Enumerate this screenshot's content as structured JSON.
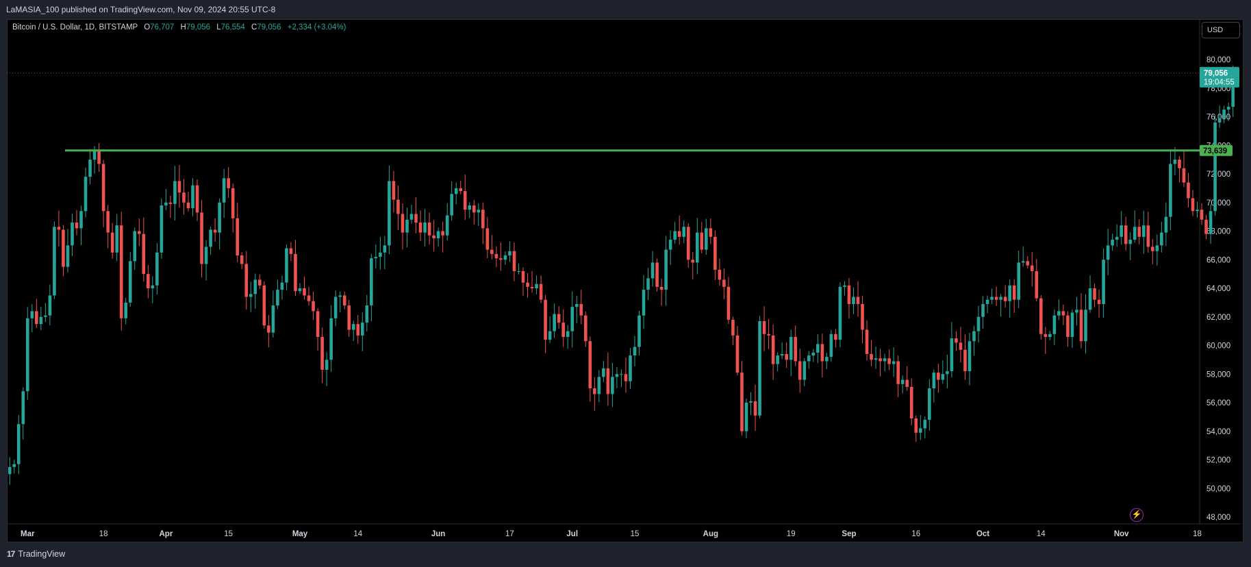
{
  "header": {
    "publish_line": "LaMASIA_100 published on TradingView.com, Nov 09, 2024 20:55 UTC-8"
  },
  "legend": {
    "symbol": "Bitcoin / U.S. Dollar, 1D, BITSTAMP",
    "open_label": "O",
    "open": "76,707",
    "high_label": "H",
    "high": "79,056",
    "low_label": "L",
    "low": "76,554",
    "close_label": "C",
    "close": "79,056",
    "change": "+2,334 (+3.04%)"
  },
  "currency_button": "USD",
  "footer": {
    "brand": "TradingView",
    "logo_mark": "17"
  },
  "icons": {
    "bolt": "lightning-icon"
  },
  "colors": {
    "up": "#26a69a",
    "down": "#ef5350",
    "level": "#4caf50",
    "last_price_tag": "#26a69a"
  },
  "chart_data": {
    "type": "candlestick",
    "title": "Bitcoin / U.S. Dollar, 1D, BITSTAMP",
    "ylim": [
      47000,
      82000
    ],
    "y_ticks": [
      48000,
      50000,
      52000,
      54000,
      56000,
      58000,
      60000,
      62000,
      64000,
      66000,
      68000,
      70000,
      72000,
      74000,
      76000,
      78000,
      80000
    ],
    "y_tick_labels": [
      "48,000",
      "50,000",
      "52,000",
      "54,000",
      "56,000",
      "58,000",
      "60,000",
      "62,000",
      "64,000",
      "66,000",
      "68,000",
      "70,000",
      "72,000",
      "74,000",
      "76,000",
      "78,000",
      "80,000"
    ],
    "x_ticks": [
      {
        "label": "Mar",
        "date": "2024-03-01",
        "bold": true
      },
      {
        "label": "18",
        "date": "2024-03-18",
        "bold": false
      },
      {
        "label": "Apr",
        "date": "2024-04-01",
        "bold": true
      },
      {
        "label": "15",
        "date": "2024-04-15",
        "bold": false
      },
      {
        "label": "May",
        "date": "2024-05-01",
        "bold": true
      },
      {
        "label": "14",
        "date": "2024-05-14",
        "bold": false
      },
      {
        "label": "Jun",
        "date": "2024-06-01",
        "bold": true
      },
      {
        "label": "17",
        "date": "2024-06-17",
        "bold": false
      },
      {
        "label": "Jul",
        "date": "2024-07-01",
        "bold": true
      },
      {
        "label": "15",
        "date": "2024-07-15",
        "bold": false
      },
      {
        "label": "Aug",
        "date": "2024-08-01",
        "bold": true
      },
      {
        "label": "19",
        "date": "2024-08-19",
        "bold": false
      },
      {
        "label": "Sep",
        "date": "2024-09-01",
        "bold": true
      },
      {
        "label": "16",
        "date": "2024-09-16",
        "bold": false
      },
      {
        "label": "Oct",
        "date": "2024-10-01",
        "bold": true
      },
      {
        "label": "14",
        "date": "2024-10-14",
        "bold": false
      },
      {
        "label": "Nov",
        "date": "2024-11-01",
        "bold": true
      },
      {
        "label": "18",
        "date": "2024-11-18",
        "bold": false
      }
    ],
    "start_date": "2024-02-26",
    "closes": [
      51500,
      51700,
      54500,
      56800,
      61900,
      62400,
      61500,
      62000,
      62100,
      63500,
      68300,
      68100,
      65500,
      67000,
      68600,
      68200,
      69400,
      71800,
      73000,
      73600,
      72700,
      69400,
      67900,
      66500,
      68400,
      61900,
      63000,
      65900,
      68000,
      67800,
      65000,
      64000,
      64200,
      66500,
      69800,
      70000,
      69900,
      71500,
      70700,
      70000,
      69600,
      71200,
      69300,
      65700,
      66900,
      68100,
      67900,
      70000,
      71700,
      71000,
      68900,
      66300,
      65700,
      63400,
      63600,
      64600,
      64200,
      61400,
      60900,
      62800,
      63900,
      64400,
      66800,
      66400,
      63800,
      64000,
      63500,
      63100,
      62400,
      60600,
      58300,
      59000,
      61900,
      63400,
      63500,
      62800,
      61100,
      61500,
      60700,
      61600,
      62800,
      66100,
      66200,
      66500,
      67000,
      71500,
      70200,
      69200,
      67900,
      68800,
      69200,
      68600,
      67900,
      68600,
      67700,
      67500,
      68000,
      67700,
      69100,
      70600,
      71000,
      70800,
      69500,
      69800,
      69300,
      69500,
      68200,
      66700,
      66400,
      66100,
      66000,
      66300,
      66600,
      65200,
      65200,
      64400,
      64100,
      64000,
      64300,
      63200,
      60400,
      61000,
      62200,
      61600,
      60600,
      61000,
      62700,
      62900,
      62100,
      60300,
      57000,
      56600,
      57800,
      58400,
      56600,
      57800,
      58000,
      58000,
      57500,
      59300,
      59900,
      62100,
      63900,
      64700,
      65800,
      64100,
      63900,
      66700,
      67400,
      68000,
      67600,
      68300,
      66000,
      65800,
      67900,
      66700,
      68200,
      67600,
      65300,
      64600,
      64100,
      61800,
      60700,
      58100,
      54000,
      56000,
      56100,
      55100,
      61700,
      60800,
      60700,
      58700,
      59300,
      59400,
      59000,
      60600,
      58900,
      57600,
      58900,
      59300,
      59500,
      60100,
      58900,
      59200,
      60800,
      60400,
      64100,
      64200,
      62900,
      63400,
      62900,
      61100,
      59400,
      59000,
      59100,
      58900,
      59100,
      58700,
      58900,
      57300,
      57600,
      57100,
      54900,
      53900,
      54200,
      54800,
      57000,
      58100,
      57600,
      58000,
      58200,
      60500,
      60200,
      59700,
      58200,
      60300,
      61000,
      62000,
      62900,
      63200,
      63400,
      63200,
      63400,
      63100,
      64200,
      63200,
      65800,
      65900,
      65600,
      65200,
      63300,
      60800,
      60600,
      60800,
      62100,
      62400,
      62100,
      60600,
      62300,
      62500,
      60300,
      62500,
      64000,
      63200,
      62900,
      66000,
      67000,
      67400,
      67600,
      68400,
      67100,
      67400,
      68300,
      67600,
      68400,
      66900,
      66600,
      67000,
      67900,
      69000,
      72700,
      73000,
      72400,
      71400,
      70300,
      69400,
      69500,
      68800,
      67800,
      69400,
      75600,
      75900,
      76500,
      76700,
      79056
    ],
    "level_line": {
      "value": 73639,
      "label": "73,639"
    },
    "last_price": {
      "value": 79056,
      "label": "79,056",
      "countdown": "19:04:55"
    }
  }
}
